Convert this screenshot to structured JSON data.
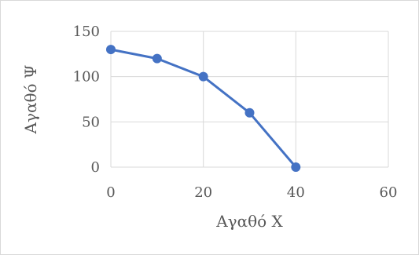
{
  "chart_data": {
    "type": "scatter",
    "title": "",
    "xlabel": "Αγαθό X",
    "ylabel": "Αγαθό Ψ",
    "xlim": [
      0,
      60
    ],
    "ylim": [
      0,
      150
    ],
    "x_ticks": [
      "0",
      "20",
      "40",
      "60"
    ],
    "y_ticks": [
      "0",
      "50",
      "100",
      "150"
    ],
    "grid": true,
    "legend": false,
    "series": [
      {
        "x": [
          0,
          10,
          20,
          30,
          40
        ],
        "y": [
          130,
          120,
          100,
          60,
          0
        ],
        "lines": true,
        "markers": true
      }
    ],
    "colors": {
      "series": "#4472c4",
      "grid": "#d9d9d9",
      "text": "#595959"
    }
  }
}
